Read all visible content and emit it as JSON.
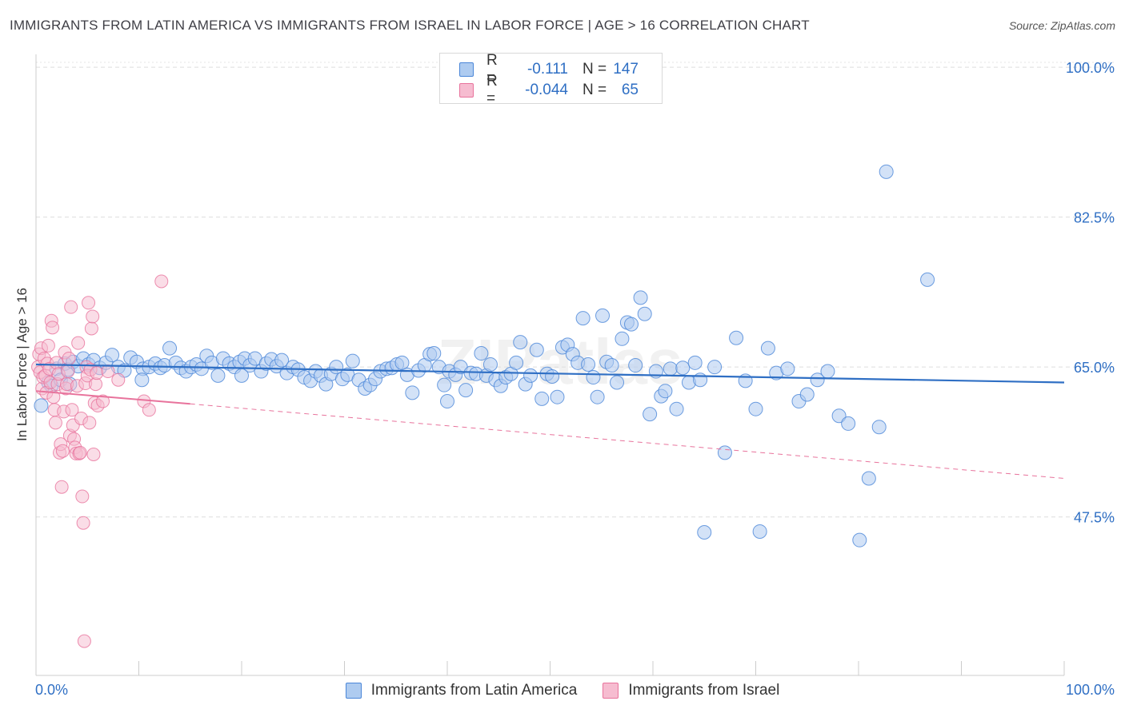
{
  "header": {
    "title": "IMMIGRANTS FROM LATIN AMERICA VS IMMIGRANTS FROM ISRAEL IN LABOR FORCE | AGE > 16 CORRELATION CHART",
    "source": "Source: ZipAtlas.com"
  },
  "watermark": "ZIPatlas",
  "colors": {
    "blue": "#4a86d8",
    "blue_fill": "#aecbf0",
    "pink": "#e8739c",
    "pink_fill": "#f6bcd0",
    "value_text": "#2f6fc4",
    "grid": "#dddddd"
  },
  "legend_top": [
    {
      "r_label": "R =",
      "r_value": "-0.111",
      "n_label": "N =",
      "n_value": "147"
    },
    {
      "r_label": "R =",
      "r_value": "-0.044",
      "n_label": "N =",
      "n_value": "65"
    }
  ],
  "chart_data": {
    "type": "scatter",
    "title": "IMMIGRANTS FROM LATIN AMERICA VS IMMIGRANTS FROM ISRAEL IN LABOR FORCE | AGE > 16 CORRELATION CHART",
    "xlabel": "",
    "ylabel": "In Labor Force | Age > 16",
    "xlim": [
      0,
      100
    ],
    "ylim": [
      29,
      101.5
    ],
    "x_tick_labels": [
      "0.0%",
      "100.0%"
    ],
    "y_ticks": [
      47.5,
      65.0,
      82.5,
      100.0
    ],
    "y_tick_labels": [
      "47.5%",
      "65.0%",
      "82.5%",
      "100.0%"
    ],
    "grid": "horizontal dashed",
    "legend_position": "bottom",
    "series": [
      {
        "name": "Immigrants from Latin America",
        "color": "#4a86d8",
        "r": -0.111,
        "n": 147,
        "trend": {
          "x": [
            0,
            100
          ],
          "y": [
            65.3,
            63.2
          ],
          "style": "solid"
        },
        "points": [
          [
            0.5,
            60.5
          ],
          [
            1.2,
            63.2
          ],
          [
            1.5,
            62.8
          ],
          [
            2.0,
            64.8
          ],
          [
            2.4,
            63.5
          ],
          [
            2.8,
            65.4
          ],
          [
            3.1,
            64.7
          ],
          [
            3.6,
            65.6
          ],
          [
            4.1,
            65.1
          ],
          [
            4.6,
            66.0
          ],
          [
            5.1,
            65.3
          ],
          [
            5.6,
            65.8
          ],
          [
            6.2,
            64.9
          ],
          [
            6.8,
            65.5
          ],
          [
            7.4,
            66.4
          ],
          [
            8.0,
            65.0
          ],
          [
            8.6,
            64.6
          ],
          [
            9.2,
            66.1
          ],
          [
            9.8,
            65.6
          ],
          [
            10.4,
            64.8
          ],
          [
            11.0,
            65.0
          ],
          [
            11.6,
            65.4
          ],
          [
            12.1,
            64.9
          ],
          [
            12.5,
            65.2
          ],
          [
            13.0,
            67.2
          ],
          [
            13.6,
            65.5
          ],
          [
            14.1,
            64.9
          ],
          [
            14.6,
            64.5
          ],
          [
            15.1,
            65.0
          ],
          [
            15.6,
            65.3
          ],
          [
            16.1,
            64.8
          ],
          [
            16.6,
            66.3
          ],
          [
            17.1,
            65.5
          ],
          [
            17.7,
            64.0
          ],
          [
            18.2,
            66.0
          ],
          [
            18.8,
            65.4
          ],
          [
            19.3,
            65.0
          ],
          [
            19.8,
            65.6
          ],
          [
            20.3,
            66.0
          ],
          [
            20.8,
            65.2
          ],
          [
            21.3,
            66.0
          ],
          [
            21.9,
            64.5
          ],
          [
            22.4,
            65.4
          ],
          [
            22.9,
            65.9
          ],
          [
            23.4,
            65.1
          ],
          [
            23.9,
            65.8
          ],
          [
            24.4,
            64.3
          ],
          [
            25.0,
            65.0
          ],
          [
            25.5,
            64.7
          ],
          [
            26.1,
            63.8
          ],
          [
            26.7,
            63.4
          ],
          [
            27.2,
            64.5
          ],
          [
            27.7,
            64.0
          ],
          [
            28.2,
            63.0
          ],
          [
            28.7,
            64.2
          ],
          [
            29.2,
            65.0
          ],
          [
            29.8,
            63.6
          ],
          [
            30.3,
            64.1
          ],
          [
            30.8,
            65.7
          ],
          [
            31.4,
            63.5
          ],
          [
            32.0,
            62.5
          ],
          [
            32.5,
            62.9
          ],
          [
            33.0,
            63.6
          ],
          [
            33.5,
            64.5
          ],
          [
            34.1,
            64.8
          ],
          [
            34.6,
            64.9
          ],
          [
            35.1,
            65.3
          ],
          [
            35.6,
            65.5
          ],
          [
            36.1,
            64.1
          ],
          [
            36.6,
            62.0
          ],
          [
            37.2,
            64.6
          ],
          [
            37.8,
            65.2
          ],
          [
            38.3,
            66.5
          ],
          [
            38.7,
            66.6
          ],
          [
            39.2,
            65.0
          ],
          [
            39.7,
            62.9
          ],
          [
            40.2,
            64.5
          ],
          [
            40.8,
            64.1
          ],
          [
            41.3,
            65.0
          ],
          [
            41.8,
            62.3
          ],
          [
            42.3,
            64.3
          ],
          [
            42.8,
            64.2
          ],
          [
            43.3,
            66.6
          ],
          [
            43.8,
            64.0
          ],
          [
            44.2,
            65.3
          ],
          [
            44.7,
            63.5
          ],
          [
            45.2,
            62.8
          ],
          [
            45.7,
            63.8
          ],
          [
            46.2,
            64.2
          ],
          [
            46.7,
            65.5
          ],
          [
            47.1,
            67.9
          ],
          [
            47.6,
            63.0
          ],
          [
            48.1,
            64.0
          ],
          [
            48.7,
            67.0
          ],
          [
            49.2,
            61.3
          ],
          [
            49.7,
            64.2
          ],
          [
            50.2,
            63.9
          ],
          [
            50.7,
            61.5
          ],
          [
            51.2,
            67.3
          ],
          [
            51.7,
            67.6
          ],
          [
            52.2,
            66.5
          ],
          [
            52.7,
            65.5
          ],
          [
            53.2,
            70.7
          ],
          [
            53.7,
            65.3
          ],
          [
            54.2,
            63.8
          ],
          [
            54.6,
            61.5
          ],
          [
            55.1,
            71.0
          ],
          [
            55.5,
            65.6
          ],
          [
            56.0,
            65.2
          ],
          [
            56.5,
            63.2
          ],
          [
            57.0,
            68.3
          ],
          [
            57.5,
            70.2
          ],
          [
            57.9,
            70.0
          ],
          [
            58.3,
            65.2
          ],
          [
            58.8,
            73.1
          ],
          [
            59.2,
            71.2
          ],
          [
            59.7,
            59.5
          ],
          [
            60.3,
            64.5
          ],
          [
            60.8,
            61.6
          ],
          [
            61.2,
            62.2
          ],
          [
            61.7,
            64.8
          ],
          [
            62.3,
            60.1
          ],
          [
            62.9,
            64.9
          ],
          [
            63.5,
            63.2
          ],
          [
            64.1,
            65.5
          ],
          [
            64.6,
            63.5
          ],
          [
            65.0,
            45.7
          ],
          [
            66.0,
            65.0
          ],
          [
            67.0,
            55.0
          ],
          [
            68.1,
            68.4
          ],
          [
            69.0,
            63.4
          ],
          [
            70.0,
            60.1
          ],
          [
            70.4,
            45.8
          ],
          [
            71.2,
            67.2
          ],
          [
            72.0,
            64.3
          ],
          [
            73.1,
            64.8
          ],
          [
            74.2,
            61.0
          ],
          [
            75.0,
            61.8
          ],
          [
            76.0,
            63.5
          ],
          [
            77.0,
            64.5
          ],
          [
            78.1,
            59.3
          ],
          [
            79.0,
            58.4
          ],
          [
            80.1,
            44.8
          ],
          [
            81.0,
            52.0
          ],
          [
            82.0,
            58.0
          ],
          [
            82.7,
            87.8
          ],
          [
            86.7,
            75.2
          ],
          [
            10.3,
            63.5
          ],
          [
            3.3,
            63.0
          ],
          [
            20.0,
            64.0
          ],
          [
            40.0,
            61.0
          ]
        ]
      },
      {
        "name": "Immigrants from Israel",
        "color": "#e8739c",
        "r": -0.044,
        "n": 65,
        "trend_solid": {
          "x": [
            0,
            15
          ],
          "y": [
            62.2,
            60.7
          ]
        },
        "trend_dashed": {
          "x": [
            15,
            100
          ],
          "y": [
            60.7,
            52.0
          ]
        },
        "points": [
          [
            0.2,
            65.0
          ],
          [
            0.3,
            66.5
          ],
          [
            0.4,
            64.4
          ],
          [
            0.5,
            67.2
          ],
          [
            0.6,
            62.5
          ],
          [
            0.7,
            63.8
          ],
          [
            0.8,
            66.0
          ],
          [
            0.9,
            64.0
          ],
          [
            1.0,
            62.0
          ],
          [
            1.1,
            65.4
          ],
          [
            1.2,
            67.5
          ],
          [
            1.3,
            64.8
          ],
          [
            1.4,
            63.2
          ],
          [
            1.5,
            70.4
          ],
          [
            1.6,
            69.6
          ],
          [
            1.7,
            61.5
          ],
          [
            1.8,
            60.0
          ],
          [
            1.9,
            58.5
          ],
          [
            2.0,
            65.5
          ],
          [
            2.1,
            63.0
          ],
          [
            2.2,
            64.2
          ],
          [
            2.3,
            55.0
          ],
          [
            2.4,
            56.0
          ],
          [
            2.5,
            51.0
          ],
          [
            2.6,
            55.2
          ],
          [
            2.7,
            59.8
          ],
          [
            2.8,
            66.7
          ],
          [
            2.9,
            62.5
          ],
          [
            3.0,
            63.0
          ],
          [
            3.1,
            64.5
          ],
          [
            3.2,
            66.0
          ],
          [
            3.3,
            57.0
          ],
          [
            3.4,
            72.0
          ],
          [
            3.5,
            60.0
          ],
          [
            3.6,
            58.2
          ],
          [
            3.7,
            56.6
          ],
          [
            3.8,
            55.6
          ],
          [
            3.9,
            54.9
          ],
          [
            4.0,
            62.8
          ],
          [
            4.1,
            67.8
          ],
          [
            4.2,
            54.9
          ],
          [
            4.3,
            55.0
          ],
          [
            4.4,
            59.0
          ],
          [
            4.5,
            49.9
          ],
          [
            4.6,
            46.8
          ],
          [
            4.7,
            33.0
          ],
          [
            4.8,
            63.1
          ],
          [
            4.9,
            65.0
          ],
          [
            5.0,
            64.0
          ],
          [
            5.1,
            72.5
          ],
          [
            5.2,
            58.5
          ],
          [
            5.3,
            64.7
          ],
          [
            5.4,
            69.5
          ],
          [
            5.5,
            70.9
          ],
          [
            5.6,
            54.8
          ],
          [
            5.7,
            60.8
          ],
          [
            5.8,
            63.0
          ],
          [
            5.9,
            64.3
          ],
          [
            6.0,
            60.5
          ],
          [
            6.5,
            61.0
          ],
          [
            7.0,
            64.5
          ],
          [
            8.0,
            63.5
          ],
          [
            10.5,
            61.0
          ],
          [
            11.0,
            60.0
          ],
          [
            12.2,
            75.0
          ]
        ]
      }
    ]
  },
  "legend_bottom": [
    "Immigrants from Latin America",
    "Immigrants from Israel"
  ]
}
